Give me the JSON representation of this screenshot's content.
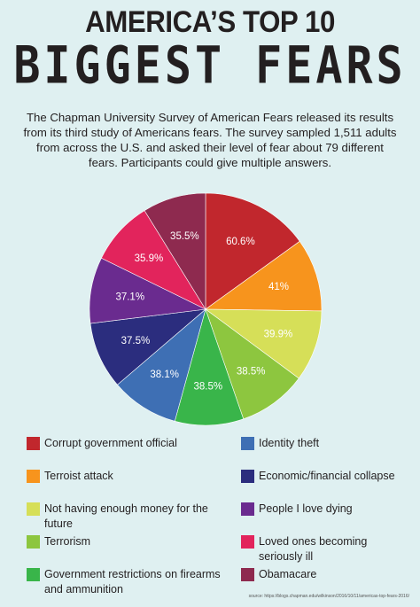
{
  "header": {
    "title_line1": "AMERICA’S TOP 10",
    "title_line2": "BIGGEST FEARS"
  },
  "intro": "The Chapman University Survey of American Fears released its results from its third study of Americans fears. The survey sampled 1,511 adults from across the U.S. and asked their level of fear about 79 different fears. Participants could give multiple answers.",
  "chart_data": {
    "type": "pie",
    "slices": [
      {
        "label": "Corrupt government official",
        "value": 60.6,
        "value_label": "60.6%",
        "color": "#c1272d"
      },
      {
        "label": "Terroist attack",
        "value": 41,
        "value_label": "41%",
        "color": "#f7941d"
      },
      {
        "label": "Not having enough money for the future",
        "value": 39.9,
        "value_label": "39.9%",
        "color": "#d6df58"
      },
      {
        "label": "Terrorism",
        "value": 38.5,
        "value_label": "38.5%",
        "color": "#8dc63f"
      },
      {
        "label": "Government restrictions on firearms and ammunition",
        "value": 38.5,
        "value_label": "38.5%",
        "color": "#39b54a"
      },
      {
        "label": "Identity theft",
        "value": 38.1,
        "value_label": "38.1%",
        "color": "#3e6fb4"
      },
      {
        "label": "Economic/financial collapse",
        "value": 37.5,
        "value_label": "37.5%",
        "color": "#2b2d7e"
      },
      {
        "label": "People I love dying",
        "value": 37.1,
        "value_label": "37.1%",
        "color": "#6a2b8f"
      },
      {
        "label": "Loved ones becoming seriously ill",
        "value": 35.9,
        "value_label": "35.9%",
        "color": "#e2245c"
      },
      {
        "label": "Obamacare",
        "value": 35.5,
        "value_label": "35.5%",
        "color": "#8e2a4f"
      }
    ],
    "legend_placement": "bottom"
  },
  "source": "source: https://blogs.chapman.edu/wilkinson/2016/10/11/americas-top-fears-2016/"
}
